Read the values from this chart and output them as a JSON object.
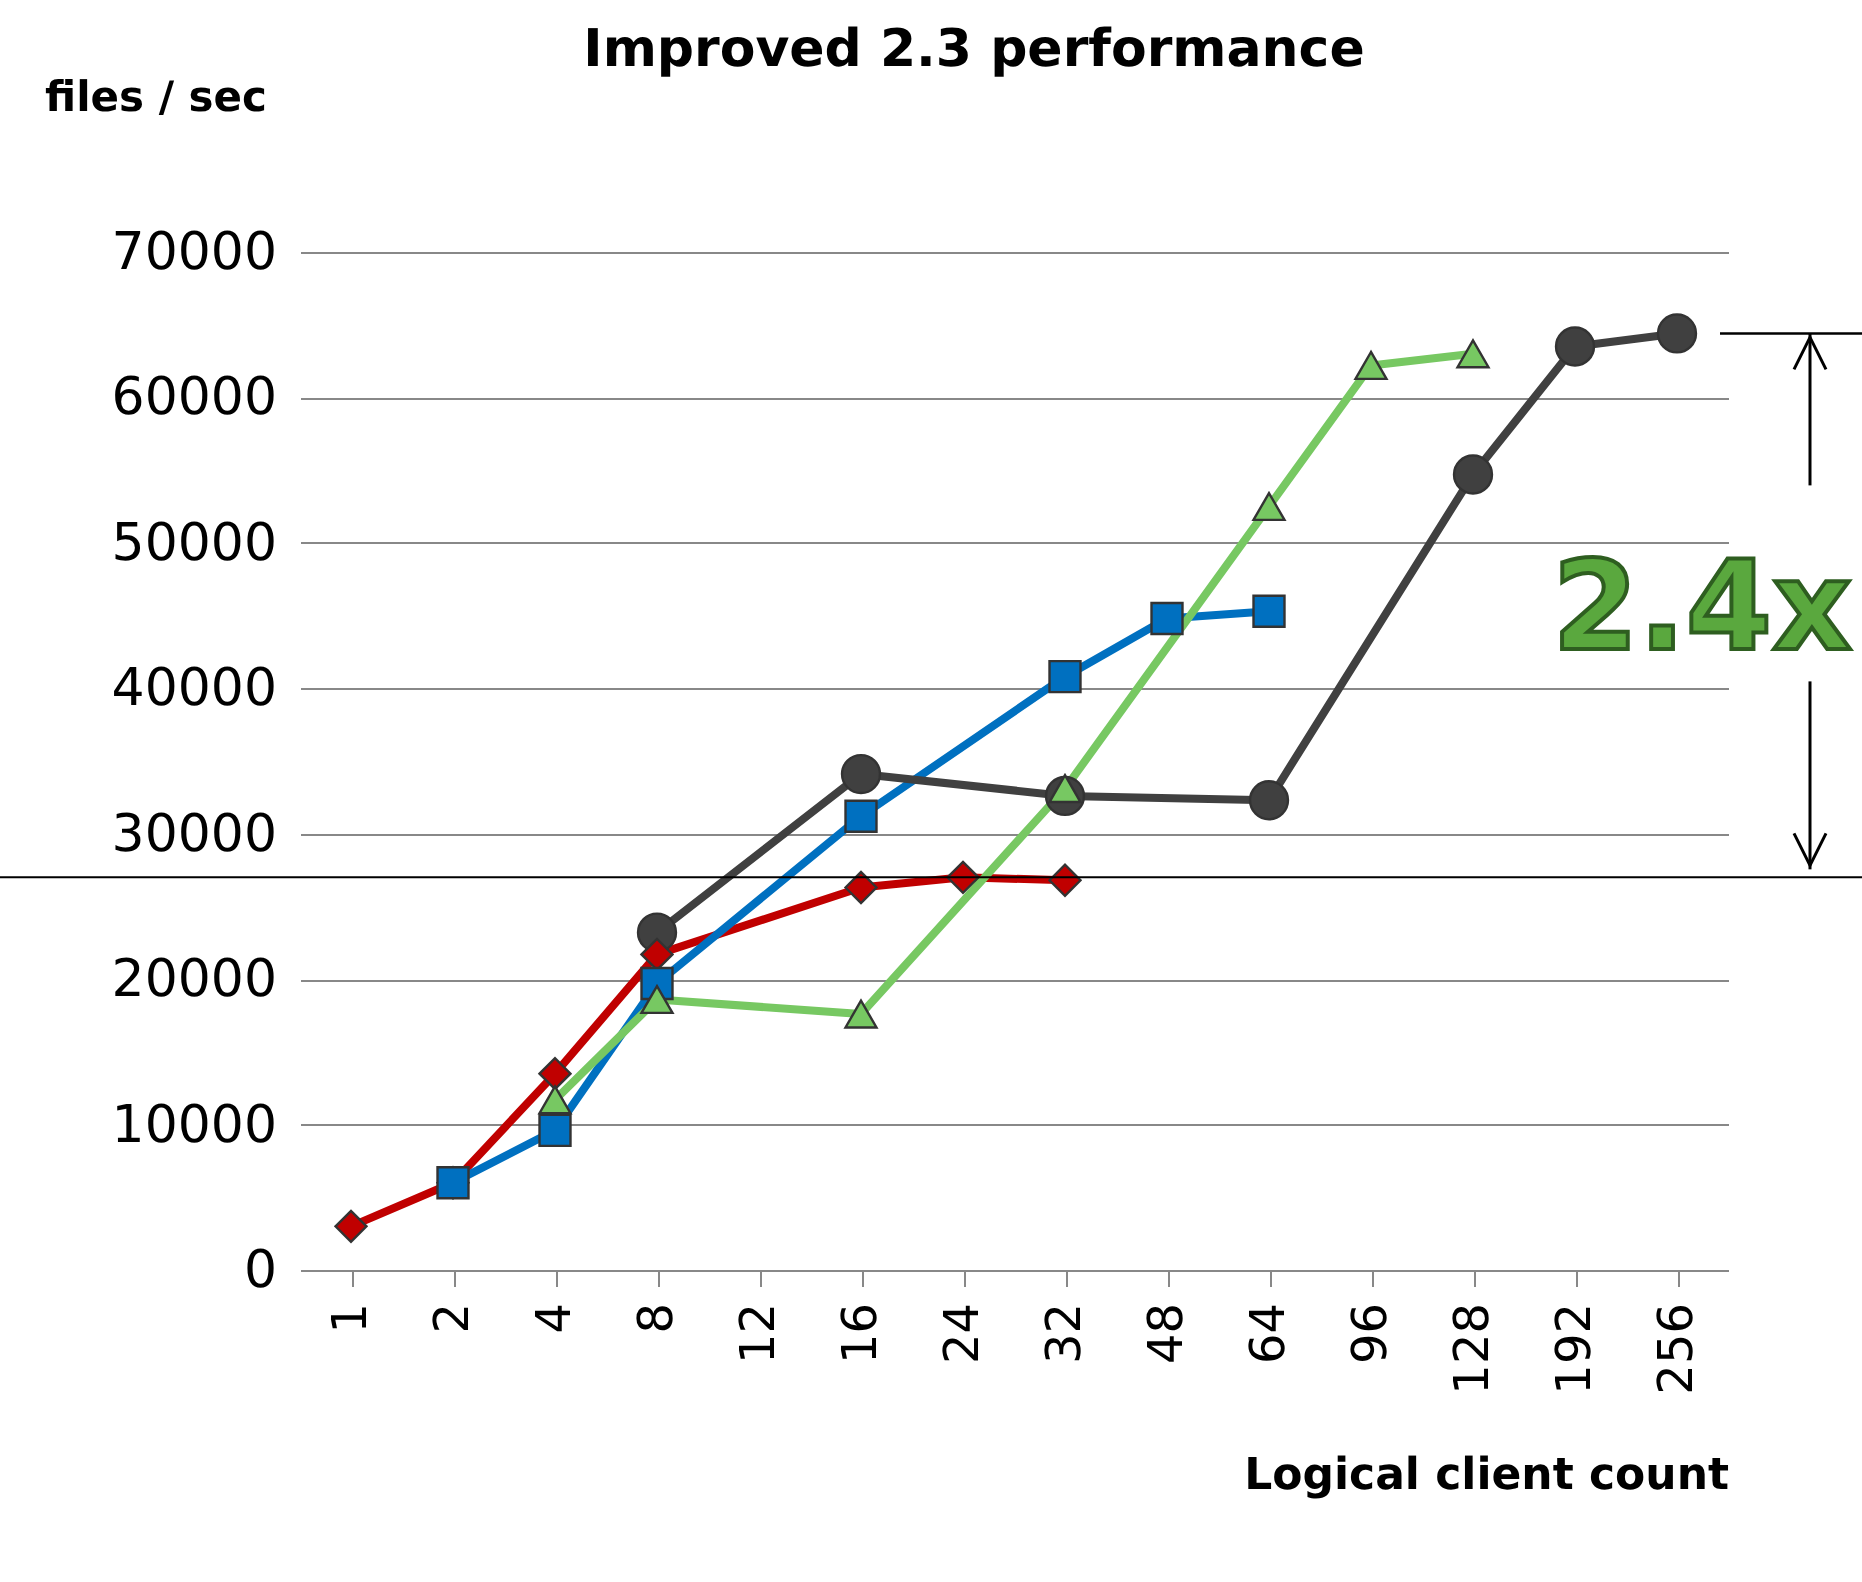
{
  "chart_data": {
    "type": "line",
    "title": "Improved 2.3 performance",
    "ylabel": "files / sec",
    "xlabel": "Logical client count",
    "categories": [
      "1",
      "2",
      "4",
      "8",
      "12",
      "16",
      "24",
      "32",
      "48",
      "64",
      "96",
      "128",
      "192",
      "256"
    ],
    "series": [
      {
        "color": "#c00000",
        "marker": "diamond",
        "values": [
          3000,
          6000,
          13500,
          21700,
          null,
          26300,
          27000,
          26800,
          null,
          null,
          null,
          null,
          null,
          null
        ]
      },
      {
        "color": "#0070c0",
        "marker": "square",
        "values": [
          null,
          6000,
          9600,
          19700,
          null,
          31200,
          null,
          40800,
          44800,
          45300,
          null,
          null,
          null,
          null
        ]
      },
      {
        "color": "#77c862",
        "marker": "triangle",
        "values": [
          null,
          null,
          11700,
          18600,
          null,
          17600,
          null,
          33100,
          null,
          52500,
          62200,
          63000,
          null,
          null
        ]
      },
      {
        "color": "#404040",
        "marker": "circle",
        "values": [
          null,
          null,
          null,
          23200,
          null,
          34100,
          null,
          32600,
          null,
          32300,
          null,
          54700,
          63500,
          64400
        ]
      }
    ],
    "ylim": [
      0,
      70000
    ],
    "yticks": [
      0,
      10000,
      20000,
      30000,
      40000,
      50000,
      60000,
      70000
    ],
    "grid": "y",
    "ref_lines": [
      {
        "axis": "y",
        "value": 27000,
        "color": "#000000"
      }
    ],
    "annotations": [
      "2.4x"
    ]
  }
}
